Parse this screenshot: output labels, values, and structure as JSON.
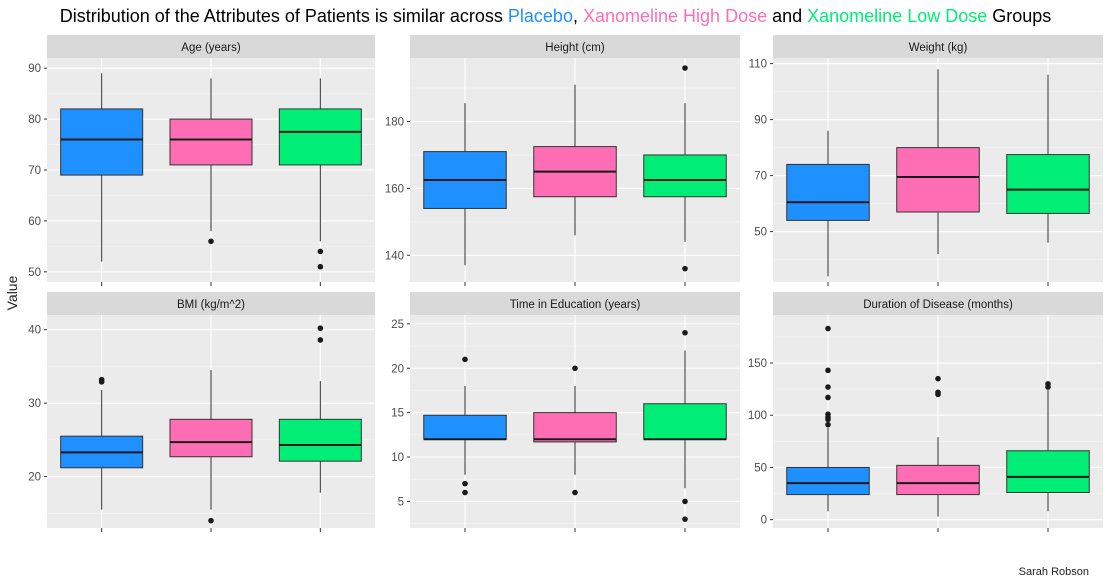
{
  "title": {
    "prefix": "Distribution of the Attributes of Patients is similar across ",
    "group1": "Placebo",
    "sep1": ", ",
    "group2": "Xanomeline High Dose",
    "sep2": " and ",
    "group3": "Xanomeline Low Dose",
    "suffix": " Groups"
  },
  "ylabel": "Value",
  "credit": "Sarah Robson",
  "colors": {
    "placebo": "#1e90ff",
    "high": "#ff6eb4",
    "low": "#00ee76",
    "strip": "#d9d9d9",
    "panel": "#ebebeb"
  },
  "chart_data": [
    {
      "type": "box",
      "title": "Age (years)",
      "ylim": [
        48,
        92
      ],
      "yticks": [
        50,
        60,
        70,
        80,
        90
      ],
      "groups": [
        "Placebo",
        "Xanomeline High Dose",
        "Xanomeline Low Dose"
      ],
      "boxes": [
        {
          "min": 52,
          "q1": 69,
          "median": 76,
          "q3": 82,
          "max": 89,
          "outliers": []
        },
        {
          "min": 58,
          "q1": 71,
          "median": 76,
          "q3": 80,
          "max": 88,
          "outliers": [
            56
          ]
        },
        {
          "min": 56,
          "q1": 71,
          "median": 77.5,
          "q3": 82,
          "max": 88,
          "outliers": [
            54,
            51
          ]
        }
      ]
    },
    {
      "type": "box",
      "title": "Height (cm)",
      "ylim": [
        132,
        199
      ],
      "yticks": [
        140,
        160,
        180
      ],
      "groups": [
        "Placebo",
        "Xanomeline High Dose",
        "Xanomeline Low Dose"
      ],
      "boxes": [
        {
          "min": 137,
          "q1": 154,
          "median": 162.5,
          "q3": 171,
          "max": 185.5,
          "outliers": []
        },
        {
          "min": 146,
          "q1": 157.5,
          "median": 165,
          "q3": 172.5,
          "max": 191,
          "outliers": []
        },
        {
          "min": 144,
          "q1": 157.5,
          "median": 162.5,
          "q3": 170,
          "max": 185.5,
          "outliers": [
            196,
            136
          ]
        }
      ]
    },
    {
      "type": "box",
      "title": "Weight (kg)",
      "ylim": [
        32,
        112
      ],
      "yticks": [
        50,
        70,
        90,
        110
      ],
      "groups": [
        "Placebo",
        "Xanomeline High Dose",
        "Xanomeline Low Dose"
      ],
      "boxes": [
        {
          "min": 34,
          "q1": 54,
          "median": 60.5,
          "q3": 74,
          "max": 86,
          "outliers": []
        },
        {
          "min": 42,
          "q1": 57,
          "median": 69.5,
          "q3": 80,
          "max": 108,
          "outliers": []
        },
        {
          "min": 46,
          "q1": 56.5,
          "median": 65,
          "q3": 77.5,
          "max": 106,
          "outliers": []
        }
      ]
    },
    {
      "type": "box",
      "title": "BMI (kg/m^2)",
      "ylim": [
        13,
        42
      ],
      "yticks": [
        20,
        30,
        40
      ],
      "groups": [
        "Placebo",
        "Xanomeline High Dose",
        "Xanomeline Low Dose"
      ],
      "boxes": [
        {
          "min": 15.5,
          "q1": 21.2,
          "median": 23.3,
          "q3": 25.5,
          "max": 31.8,
          "outliers": [
            33.2,
            32.9
          ]
        },
        {
          "min": 15.5,
          "q1": 22.7,
          "median": 24.7,
          "q3": 27.8,
          "max": 34.5,
          "outliers": [
            14
          ]
        },
        {
          "min": 17.8,
          "q1": 22.1,
          "median": 24.3,
          "q3": 27.8,
          "max": 33,
          "outliers": [
            40.2,
            38.6
          ]
        }
      ]
    },
    {
      "type": "box",
      "title": "Time in Education (years)",
      "ylim": [
        2,
        26
      ],
      "yticks": [
        5,
        10,
        15,
        20,
        25
      ],
      "groups": [
        "Placebo",
        "Xanomeline High Dose",
        "Xanomeline Low Dose"
      ],
      "boxes": [
        {
          "min": 8,
          "q1": 12,
          "median": 12,
          "q3": 14.7,
          "max": 18,
          "outliers": [
            21,
            7,
            6
          ]
        },
        {
          "min": 8,
          "q1": 11.7,
          "median": 12,
          "q3": 15,
          "max": 18,
          "outliers": [
            20,
            6
          ]
        },
        {
          "min": 6.5,
          "q1": 12,
          "median": 12,
          "q3": 16,
          "max": 22,
          "outliers": [
            24,
            5,
            3
          ]
        }
      ]
    },
    {
      "type": "box",
      "title": "Duration of Disease (months)",
      "ylim": [
        -8,
        196
      ],
      "yticks": [
        0,
        50,
        100,
        150
      ],
      "groups": [
        "Placebo",
        "Xanomeline High Dose",
        "Xanomeline Low Dose"
      ],
      "boxes": [
        {
          "min": 8,
          "q1": 24,
          "median": 35,
          "q3": 50,
          "max": 88,
          "outliers": [
            183,
            143,
            127,
            117,
            101,
            98,
            96,
            91
          ]
        },
        {
          "min": 3,
          "q1": 24,
          "median": 35,
          "q3": 52,
          "max": 79,
          "outliers": [
            135,
            122,
            120
          ]
        },
        {
          "min": 8,
          "q1": 26,
          "median": 41,
          "q3": 66,
          "max": 124,
          "outliers": [
            130,
            127
          ]
        }
      ]
    }
  ]
}
